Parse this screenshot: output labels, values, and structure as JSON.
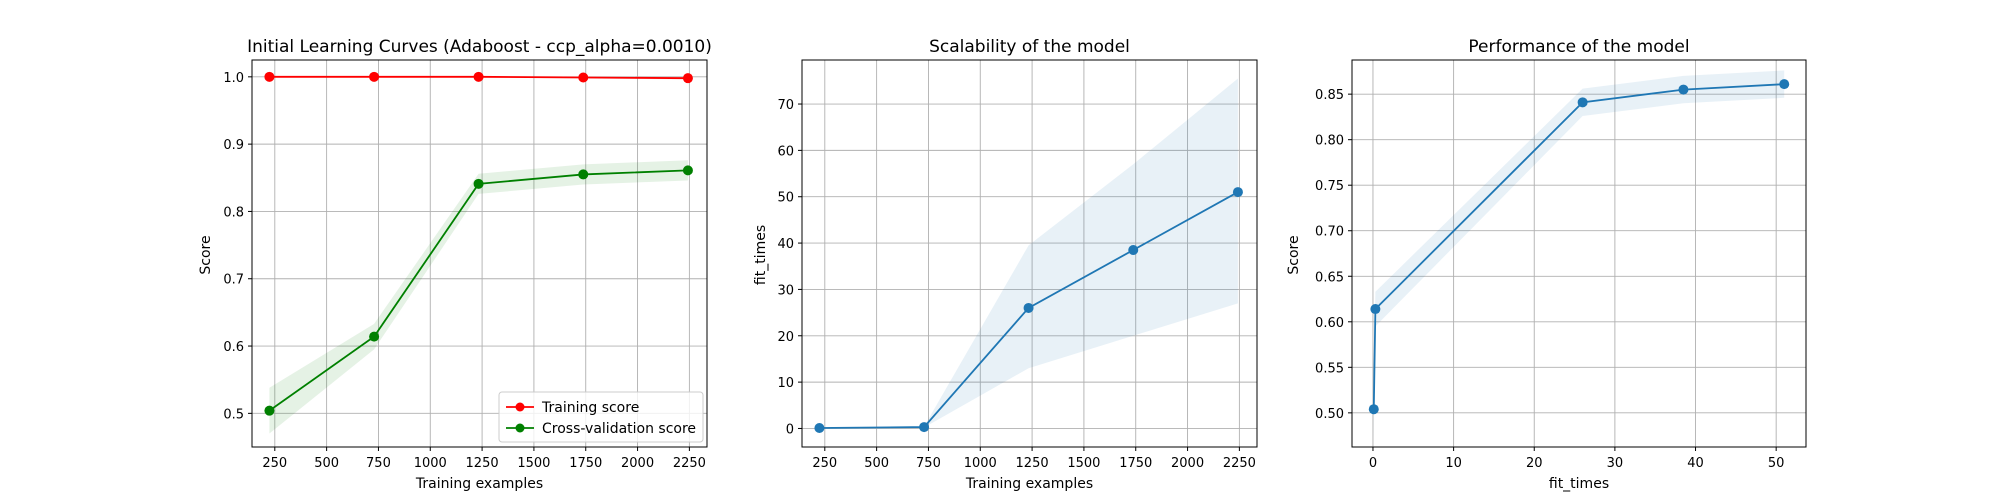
{
  "chart_data": [
    {
      "type": "line",
      "title": "Initial Learning Curves (Adaboost - ccp_alpha=0.0010)",
      "xlabel": "Training examples",
      "ylabel": "Score",
      "xlim": [
        140,
        2335
      ],
      "ylim": [
        0.45,
        1.025
      ],
      "xticks": [
        250,
        500,
        750,
        1000,
        1250,
        1500,
        1750,
        2000,
        2250
      ],
      "yticks": [
        0.5,
        0.6,
        0.7,
        0.8,
        0.9,
        1.0
      ],
      "xtick_decimals": 0,
      "ytick_decimals": 1,
      "grid": true,
      "legend_position": "lower right",
      "x": [
        224,
        729,
        1233,
        1738,
        2243
      ],
      "series": [
        {
          "name": "Training score",
          "color": "#ff0000",
          "values": [
            1.0,
            1.0,
            1.0,
            0.999,
            0.998
          ],
          "band_lower": [
            0.999,
            0.999,
            0.999,
            0.998,
            0.996
          ],
          "band_upper": [
            1.0,
            1.0,
            1.0,
            1.0,
            1.0
          ]
        },
        {
          "name": "Cross-validation score",
          "color": "#008000",
          "values": [
            0.504,
            0.614,
            0.841,
            0.855,
            0.861
          ],
          "band_lower": [
            0.47,
            0.595,
            0.826,
            0.84,
            0.846
          ],
          "band_upper": [
            0.538,
            0.633,
            0.856,
            0.87,
            0.876
          ]
        }
      ]
    },
    {
      "type": "line",
      "title": "Scalability of the model",
      "xlabel": "Training examples",
      "ylabel": "fit_times",
      "xlim": [
        140,
        2335
      ],
      "ylim": [
        -4,
        79.5
      ],
      "xticks": [
        250,
        500,
        750,
        1000,
        1250,
        1500,
        1750,
        2000,
        2250
      ],
      "yticks": [
        0,
        10,
        20,
        30,
        40,
        50,
        60,
        70
      ],
      "xtick_decimals": 0,
      "ytick_decimals": 0,
      "grid": true,
      "x": [
        224,
        729,
        1233,
        1738,
        2243
      ],
      "series": [
        {
          "color": "#1f77b4",
          "values": [
            0.1,
            0.3,
            26.0,
            38.5,
            51.0
          ],
          "band_lower": [
            0.0,
            0.2,
            13.0,
            20.0,
            27.0
          ],
          "band_upper": [
            0.2,
            0.4,
            39.5,
            57.0,
            75.5
          ]
        }
      ]
    },
    {
      "type": "line",
      "title": "Performance of the model",
      "xlabel": "fit_times",
      "ylabel": "Score",
      "xlim": [
        -2.6,
        53.7
      ],
      "ylim": [
        0.4625,
        0.8875
      ],
      "xticks": [
        0,
        10,
        20,
        30,
        40,
        50
      ],
      "yticks": [
        0.5,
        0.55,
        0.6,
        0.65,
        0.7,
        0.75,
        0.8,
        0.85
      ],
      "xtick_decimals": 0,
      "ytick_decimals": 2,
      "grid": true,
      "x": [
        0.1,
        0.3,
        26.0,
        38.5,
        51.0
      ],
      "series": [
        {
          "color": "#1f77b4",
          "values": [
            0.504,
            0.614,
            0.841,
            0.855,
            0.861
          ],
          "band_lower": [
            0.47,
            0.595,
            0.826,
            0.84,
            0.846
          ],
          "band_upper": [
            0.538,
            0.633,
            0.856,
            0.87,
            0.876
          ]
        }
      ]
    }
  ]
}
